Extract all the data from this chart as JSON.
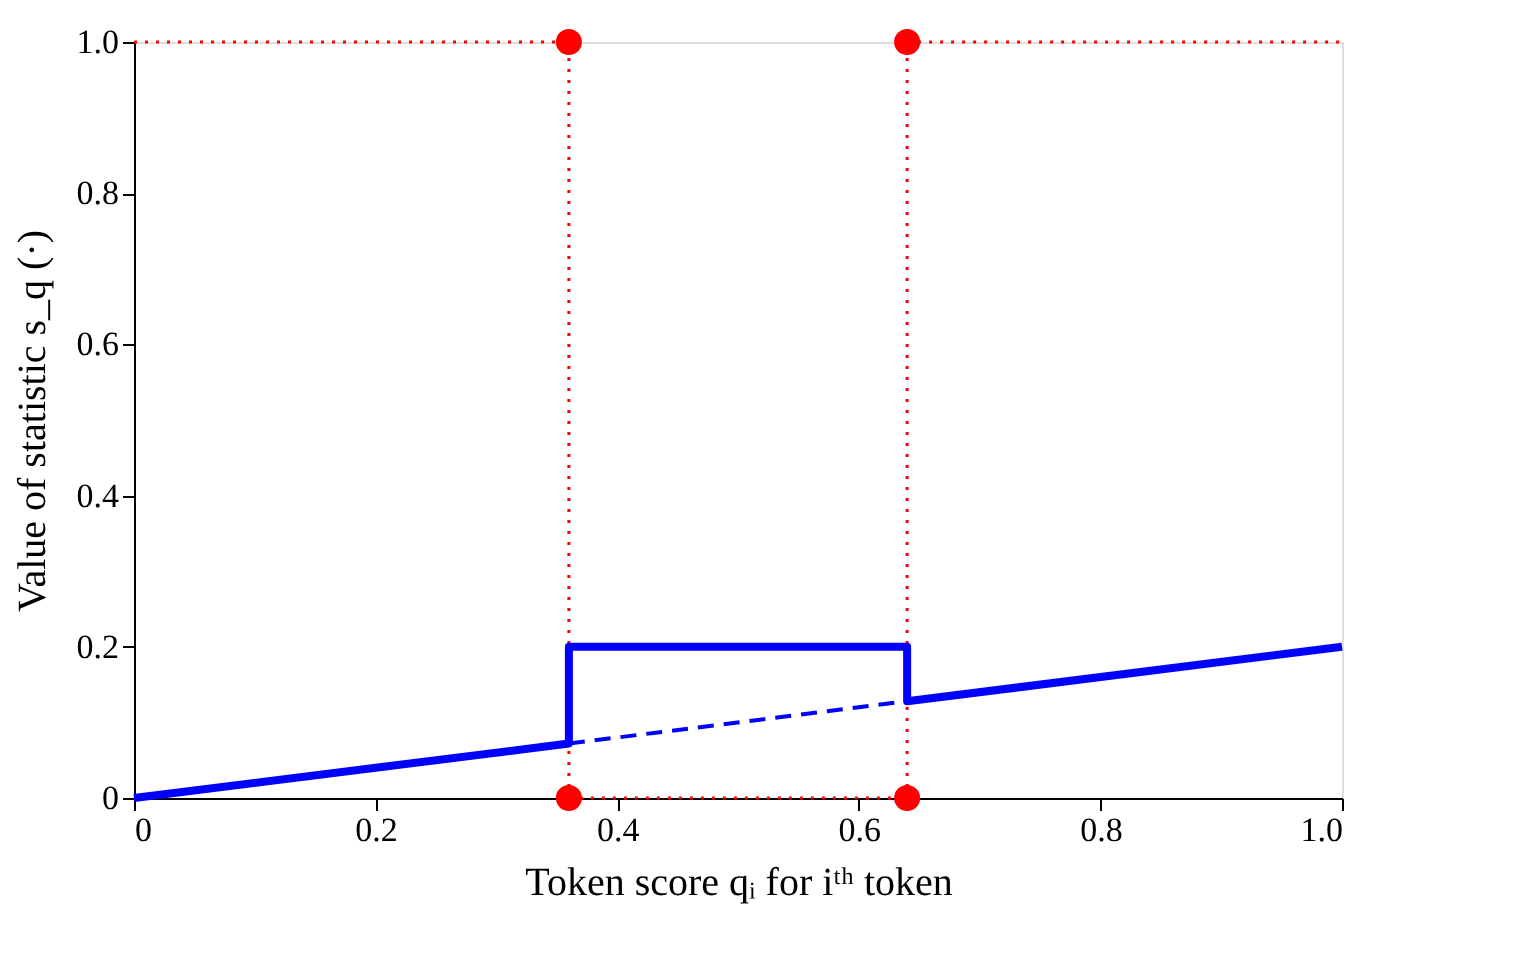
{
  "chart_data": {
    "type": "line",
    "xlabel": "Token score qᵢ for iᵗʰ token",
    "ylabel": "Value of statistic s_q (·)",
    "xlim": [
      0,
      1
    ],
    "ylim": [
      0,
      1
    ],
    "xticks": [
      0,
      0.2,
      0.4,
      0.6,
      0.8,
      {
        "value": 1,
        "label": "1.0"
      }
    ],
    "yticks": [
      0,
      0.2,
      0.4,
      0.6,
      0.8,
      {
        "value": 1,
        "label": "1.0"
      }
    ],
    "grid": false,
    "ref_lines": [
      {
        "axis": "x",
        "value": 0.36,
        "color": "#ff0000",
        "line_style": "dotted"
      },
      {
        "axis": "x",
        "value": 0.64,
        "color": "#ff0000",
        "line_style": "dotted"
      }
    ],
    "series": [
      {
        "color": "#ff0000",
        "line_style": "dotted",
        "marker": "none",
        "x": [
          0,
          0.36
        ],
        "values": [
          1,
          1
        ]
      },
      {
        "color": "#ff0000",
        "line_style": "dotted",
        "marker": "none",
        "x": [
          0.64,
          1
        ],
        "values": [
          1,
          1
        ]
      },
      {
        "color": "#ff0000",
        "line_style": "dotted",
        "marker": "none",
        "x": [
          0.36,
          0.64
        ],
        "values": [
          0,
          0
        ]
      },
      {
        "color": "#0000ff",
        "line_style": "solid",
        "marker": "none",
        "x": [
          0,
          0.36,
          0.36,
          0.64,
          0.64,
          1
        ],
        "values": [
          0,
          0.072,
          0.2,
          0.2,
          0.128,
          0.2
        ]
      },
      {
        "color": "#0000ff",
        "line_style": "dashed",
        "marker": "none",
        "x": [
          0.36,
          0.64
        ],
        "values": [
          0.072,
          0.128
        ]
      },
      {
        "type": "scatter",
        "color": "#ff0000",
        "marker": "circle",
        "x": [
          0.36,
          0.64
        ],
        "values": [
          1,
          1
        ]
      },
      {
        "type": "scatter",
        "color": "#ff0000",
        "marker": "circle",
        "x": [
          0.36,
          0.64
        ],
        "values": [
          0,
          0
        ]
      }
    ]
  }
}
